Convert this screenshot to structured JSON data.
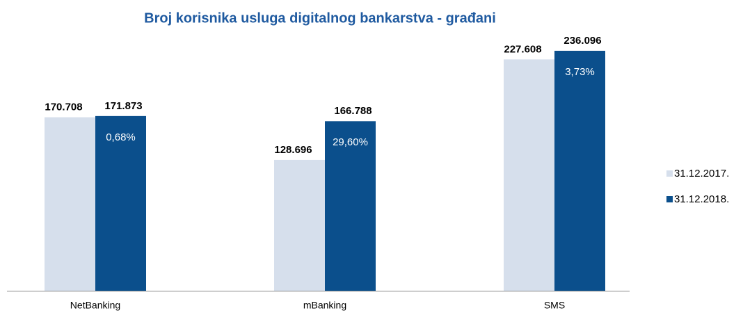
{
  "chart_data": {
    "type": "bar",
    "title": "Broj korisnika usluga digitalnog bankarstva - građani",
    "categories": [
      "NetBanking",
      "mBanking",
      "SMS"
    ],
    "series": [
      {
        "name": "31.12.2017.",
        "color": "#d6dfec",
        "values": [
          170708,
          128696,
          227608
        ],
        "value_labels": [
          "170.708",
          "128.696",
          "227.608"
        ]
      },
      {
        "name": "31.12.2018.",
        "color": "#0b4f8c",
        "values": [
          171873,
          166788,
          236096
        ],
        "value_labels": [
          "171.873",
          "166.788",
          "236.096"
        ]
      }
    ],
    "annotations": [
      "0,68%",
      "29,60%",
      "3,73%"
    ]
  }
}
